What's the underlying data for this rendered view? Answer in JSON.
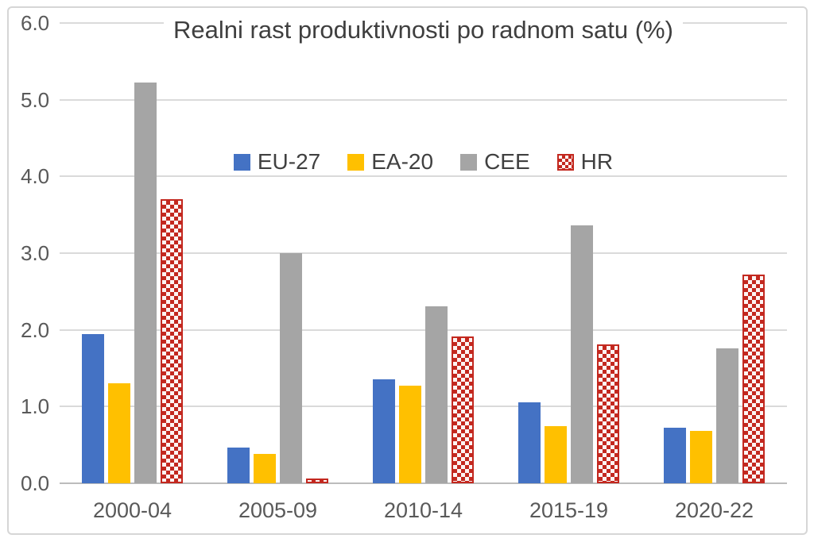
{
  "chart_data": {
    "type": "bar",
    "title": "Realni rast produktivnosti po radnom satu (%)",
    "categories": [
      "2000-04",
      "2005-09",
      "2010-14",
      "2015-19",
      "2020-22"
    ],
    "series": [
      {
        "name": "EU-27",
        "color": "#4472c4",
        "pattern": "solid",
        "values": [
          1.95,
          0.47,
          1.36,
          1.06,
          0.72
        ]
      },
      {
        "name": "EA-20",
        "color": "#ffc000",
        "pattern": "solid",
        "values": [
          1.3,
          0.38,
          1.27,
          0.74,
          0.68
        ]
      },
      {
        "name": "CEE",
        "color": "#a5a5a5",
        "pattern": "solid",
        "values": [
          5.22,
          3.0,
          2.31,
          3.36,
          1.76
        ]
      },
      {
        "name": "HR",
        "color": "#c3281f",
        "pattern": "checkerboard",
        "values": [
          3.7,
          0.06,
          1.91,
          1.81,
          2.72
        ]
      }
    ],
    "xlabel": "",
    "ylabel": "",
    "ylim": [
      0,
      6
    ],
    "ytick_labels": [
      "0.0",
      "1.0",
      "2.0",
      "3.0",
      "4.0",
      "5.0",
      "6.0"
    ],
    "grid": true,
    "legend_position": "inside-top-center"
  },
  "colors": {
    "grid": "#dadada",
    "axis": "#bcbcbc",
    "title_text": "#3f3f3f",
    "tick_text": "#595959",
    "legend_text": "#404040",
    "checker_light": "#fdf4f3",
    "frame_border": "#d6d6d6",
    "background": "#ffffff"
  }
}
